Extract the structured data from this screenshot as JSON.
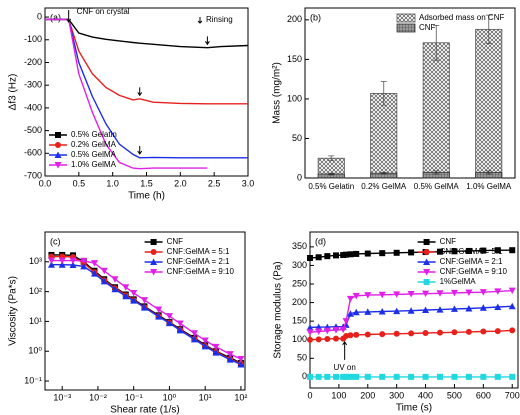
{
  "chart_data": [
    {
      "type": "line",
      "panel_label": "(a)",
      "xlabel": "Time (h)",
      "ylabel": "Δf3 (Hz)",
      "xlim": [
        0,
        3.0
      ],
      "ylim": [
        -700,
        40
      ],
      "xticks": [
        {
          "value": 0,
          "label": "0.0"
        },
        0.5,
        {
          "value": 1,
          "label": "1.0"
        },
        1.5,
        {
          "value": 2,
          "label": "2.0"
        },
        2.5,
        {
          "value": 3,
          "label": "3.0"
        }
      ],
      "yticks": [
        0,
        -100,
        -200,
        -300,
        -400,
        -500,
        -600,
        -700
      ],
      "annotations": [
        "CNF on crystal",
        "Rinsing"
      ],
      "legend": "lower left",
      "markers": false,
      "x": [
        0,
        0.35,
        0.5,
        0.7,
        0.9,
        1.1,
        1.3,
        1.4,
        1.6,
        2.0,
        2.4,
        2.6,
        3.0
      ],
      "series": [
        {
          "name": "0.5% Gelatin",
          "color": "#000000",
          "marker": "square",
          "values": [
            -10,
            -10,
            -70,
            -88,
            -98,
            -105,
            -112,
            -115,
            -120,
            -130,
            -135,
            -130,
            -125
          ]
        },
        {
          "name": "0.2% GelMA",
          "color": "#e8201c",
          "marker": "circle",
          "values": [
            -10,
            -10,
            -150,
            -250,
            -310,
            -345,
            -365,
            -360,
            -375,
            -380,
            -382,
            -382,
            -382
          ]
        },
        {
          "name": "0.5% GelMA",
          "color": "#1c2fe8",
          "marker": "triangle",
          "values": [
            -10,
            -10,
            -200,
            -350,
            -470,
            -560,
            -605,
            -620,
            -618,
            -620,
            -620,
            -620,
            -620
          ]
        },
        {
          "name": "1.0% GelMA",
          "color": "#e020e8",
          "marker": "down-triangle",
          "values": [
            -10,
            -10,
            -250,
            -420,
            -560,
            -640,
            -665,
            -668,
            -665,
            -665,
            -665,
            null,
            null
          ]
        }
      ]
    },
    {
      "type": "bar",
      "panel_label": "(b)",
      "ylabel": "Mass (mg/m²)",
      "ylim": [
        0,
        215
      ],
      "yticks": [
        0,
        50,
        100,
        150,
        200
      ],
      "legend": "upper right",
      "categories": [
        "0.5% Gelatin",
        "0.2% GelMA",
        "0.5% GelMA",
        "1.0% GelMA"
      ],
      "series": [
        {
          "name": "Adsorbed mass on CNF",
          "color": "#555555",
          "hatch": "cross",
          "values": [
            25,
            107,
            171,
            188
          ],
          "errors": [
            3,
            15,
            22,
            18
          ]
        },
        {
          "name": "CNF",
          "color": "#333333",
          "hatch": "grid",
          "values": [
            5,
            6,
            7,
            7
          ],
          "errors": [
            1,
            1,
            2,
            2
          ]
        }
      ]
    },
    {
      "type": "line",
      "panel_label": "(c)",
      "xlabel": "Shear rate (1/s)",
      "ylabel": "Viscosity (Pa*s)",
      "xlog": true,
      "ylog": true,
      "xlim": [
        0.00033,
        130
      ],
      "ylim": [
        0.05,
        10000
      ],
      "xticks": [
        {
          "value": 0.001,
          "label": "10⁻³"
        },
        {
          "value": 0.01,
          "label": "10⁻²"
        },
        {
          "value": 0.1,
          "label": "10⁻¹"
        },
        {
          "value": 1,
          "label": "10⁰"
        },
        {
          "value": 10,
          "label": "10¹"
        },
        {
          "value": 100,
          "label": "10²"
        }
      ],
      "yticks": [
        {
          "value": 0.1,
          "label": "10⁻¹"
        },
        {
          "value": 1,
          "label": "10⁰"
        },
        {
          "value": 10,
          "label": "10¹"
        },
        {
          "value": 100,
          "label": "10²"
        },
        {
          "value": 1000,
          "label": "10³"
        }
      ],
      "legend": "upper right",
      "markers": true,
      "x": [
        0.0005,
        0.001,
        0.002,
        0.004,
        0.008,
        0.015,
        0.03,
        0.06,
        0.1,
        0.2,
        0.5,
        1,
        2,
        5,
        10,
        20,
        50,
        100
      ],
      "series": [
        {
          "name": "CNF",
          "color": "#000000",
          "marker": "square",
          "values": [
            1700,
            1700,
            1650,
            1000,
            500,
            260,
            140,
            80,
            55,
            32,
            16,
            9.5,
            5.5,
            2.8,
            1.6,
            1.0,
            0.6,
            0.4
          ]
        },
        {
          "name": "CNF:GelMA = 5:1",
          "color": "#e8201c",
          "marker": "circle",
          "values": [
            1500,
            1500,
            1450,
            900,
            450,
            240,
            130,
            75,
            52,
            30,
            15,
            9,
            5.2,
            2.6,
            1.5,
            0.95,
            0.55,
            0.38
          ]
        },
        {
          "name": "CNF:GelMA = 2:1",
          "color": "#1c2fe8",
          "marker": "triangle",
          "values": [
            800,
            800,
            780,
            700,
            400,
            220,
            120,
            70,
            50,
            29,
            14.5,
            8.8,
            5,
            2.5,
            1.45,
            0.9,
            0.52,
            0.36
          ]
        },
        {
          "name": "CNF:GelMA = 9:10",
          "color": "#e020e8",
          "marker": "down-triangle",
          "values": [
            1100,
            1100,
            1100,
            1080,
            900,
            500,
            260,
            140,
            90,
            52,
            25,
            15,
            8.5,
            4,
            2.3,
            1.4,
            0.8,
            0.55
          ]
        }
      ]
    },
    {
      "type": "line",
      "panel_label": "(d)",
      "xlabel": "Time (s)",
      "ylabel": "Storage modulus (Pa)",
      "xlim": [
        0,
        720
      ],
      "ylim": [
        -30,
        390
      ],
      "xticks": [
        0,
        100,
        200,
        300,
        400,
        500,
        600,
        700
      ],
      "yticks": [
        0,
        50,
        100,
        150,
        200,
        250,
        300,
        350
      ],
      "annotations": [
        "UV on"
      ],
      "legend": "upper right",
      "markers": true,
      "x": [
        0,
        30,
        60,
        90,
        115,
        125,
        140,
        160,
        200,
        250,
        300,
        350,
        400,
        450,
        500,
        550,
        600,
        650,
        700
      ],
      "series": [
        {
          "name": "CNF",
          "color": "#000000",
          "marker": "square",
          "values": [
            320,
            322,
            325,
            327,
            328,
            329,
            330,
            331,
            332,
            333,
            334,
            335,
            336,
            337,
            338,
            339,
            340,
            341,
            341
          ]
        },
        {
          "name": "CNF:GelMA = 5:1",
          "color": "#e8201c",
          "marker": "circle",
          "values": [
            100,
            101,
            102,
            103,
            103,
            110,
            112,
            113,
            114,
            115,
            116,
            117,
            118,
            119,
            120,
            121,
            122,
            123,
            125
          ]
        },
        {
          "name": "CNF:GelMA = 2:1",
          "color": "#1c2fe8",
          "marker": "triangle",
          "values": [
            133,
            134,
            134,
            135,
            135,
            140,
            170,
            174,
            175,
            176,
            177,
            178,
            180,
            181,
            183,
            184,
            186,
            188,
            190
          ]
        },
        {
          "name": "CNF:GelMA = 9:10",
          "color": "#e020e8",
          "marker": "down-triangle",
          "values": [
            120,
            122,
            124,
            126,
            127,
            150,
            210,
            218,
            220,
            221,
            222,
            223,
            224,
            225,
            226,
            227,
            228,
            230,
            232
          ]
        },
        {
          "name": "1%GelMA",
          "color": "#22d8e0",
          "marker": "square",
          "values": [
            0,
            0,
            0,
            0,
            0,
            0,
            0,
            0,
            0,
            0,
            0,
            0,
            0,
            0,
            0,
            0,
            0,
            0,
            0
          ]
        }
      ]
    }
  ]
}
